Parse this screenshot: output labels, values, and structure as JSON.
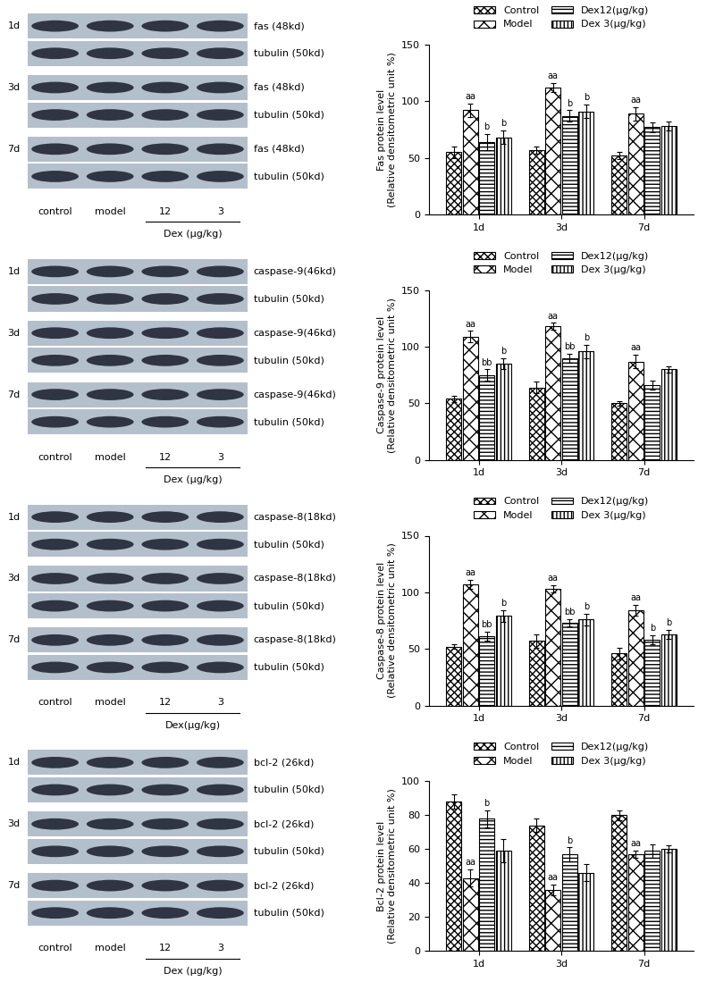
{
  "chart_data": [
    {
      "type": "bar",
      "ylabel": "Fas protein level\n(Relative densitometric unit %)",
      "categories": [
        "1d",
        "3d",
        "7d"
      ],
      "ylim": [
        0,
        150
      ],
      "yticks": [
        0,
        50,
        100,
        150
      ],
      "legend": "upper center",
      "series": [
        {
          "name": "Control",
          "color": "#ffffff",
          "values": [
            55,
            57,
            52
          ],
          "errors": [
            5,
            3,
            3
          ],
          "annotations": [
            null,
            null,
            null
          ]
        },
        {
          "name": "Model",
          "color": "#ffffff",
          "values": [
            92,
            112,
            89
          ],
          "errors": [
            6,
            4,
            6
          ],
          "annotations": [
            "aa",
            "aa",
            "aa"
          ]
        },
        {
          "name": "Dex12(μg/kg)",
          "color": "#ffffff",
          "values": [
            64,
            87,
            77
          ],
          "errors": [
            7,
            5,
            4
          ],
          "annotations": [
            "b",
            "b",
            null
          ]
        },
        {
          "name": "Dex 3(μg/kg)",
          "color": "#ffffff",
          "values": [
            68,
            91,
            78
          ],
          "errors": [
            6,
            6,
            4
          ],
          "annotations": [
            "b",
            "b",
            null
          ]
        }
      ]
    },
    {
      "type": "bar",
      "ylabel": "Caspase-9 protein level\n(Relative densitometric unit %)",
      "categories": [
        "1d",
        "3d",
        "7d"
      ],
      "ylim": [
        0,
        150
      ],
      "yticks": [
        0,
        50,
        100,
        150
      ],
      "legend": "upper center",
      "series": [
        {
          "name": "Control",
          "color": "#ffffff",
          "values": [
            54,
            64,
            50
          ],
          "errors": [
            3,
            5,
            2
          ],
          "annotations": [
            null,
            null,
            null
          ]
        },
        {
          "name": "Model",
          "color": "#ffffff",
          "values": [
            109,
            118,
            87
          ],
          "errors": [
            5,
            3,
            6
          ],
          "annotations": [
            "aa",
            "aa",
            "aa"
          ]
        },
        {
          "name": "Dex12(μg/kg)",
          "color": "#ffffff",
          "values": [
            75,
            90,
            66
          ],
          "errors": [
            5,
            4,
            4
          ],
          "annotations": [
            "bb",
            "bb",
            null
          ]
        },
        {
          "name": "Dex 3(μg/kg)",
          "color": "#ffffff",
          "values": [
            85,
            96,
            80
          ],
          "errors": [
            5,
            6,
            3
          ],
          "annotations": [
            "b",
            "b",
            null
          ]
        }
      ]
    },
    {
      "type": "bar",
      "ylabel": "Caspase-8 protein level\n(Relative densitometric unit %)",
      "categories": [
        "1d",
        "3d",
        "7d"
      ],
      "ylim": [
        0,
        150
      ],
      "yticks": [
        0,
        50,
        100,
        150
      ],
      "legend": "upper center",
      "series": [
        {
          "name": "Control",
          "color": "#ffffff",
          "values": [
            52,
            57,
            46
          ],
          "errors": [
            2,
            6,
            5
          ],
          "annotations": [
            null,
            null,
            null
          ]
        },
        {
          "name": "Model",
          "color": "#ffffff",
          "values": [
            107,
            103,
            84
          ],
          "errors": [
            4,
            3,
            5
          ],
          "annotations": [
            "aa",
            "aa",
            "aa"
          ]
        },
        {
          "name": "Dex12(μg/kg)",
          "color": "#ffffff",
          "values": [
            61,
            73,
            58
          ],
          "errors": [
            4,
            3,
            4
          ],
          "annotations": [
            "bb",
            "bb",
            "b"
          ]
        },
        {
          "name": "Dex 3(μg/kg)",
          "color": "#ffffff",
          "values": [
            79,
            76,
            63
          ],
          "errors": [
            5,
            5,
            4
          ],
          "annotations": [
            "b",
            "b",
            "b"
          ]
        }
      ]
    },
    {
      "type": "bar",
      "ylabel": "Bcl-2 protein level\n(Relative densitometric unit %)",
      "categories": [
        "1d",
        "3d",
        "7d"
      ],
      "ylim": [
        0,
        100
      ],
      "yticks": [
        0,
        20,
        40,
        60,
        80,
        100
      ],
      "legend": "upper center",
      "series": [
        {
          "name": "Control",
          "color": "#ffffff",
          "values": [
            88,
            74,
            80
          ],
          "errors": [
            4,
            4,
            3
          ],
          "annotations": [
            null,
            null,
            null
          ]
        },
        {
          "name": "Model",
          "color": "#ffffff",
          "values": [
            43,
            36,
            57
          ],
          "errors": [
            5,
            3,
            2
          ],
          "annotations": [
            "aa",
            "aa",
            "aa"
          ]
        },
        {
          "name": "Dex12(μg/kg)",
          "color": "#ffffff",
          "values": [
            78,
            57,
            59
          ],
          "errors": [
            5,
            4,
            4
          ],
          "annotations": [
            "b",
            "b",
            null
          ]
        },
        {
          "name": "Dex 3(μg/kg)",
          "color": "#ffffff",
          "values": [
            59,
            46,
            60
          ],
          "errors": [
            7,
            5,
            2
          ],
          "annotations": [
            null,
            null,
            null
          ]
        }
      ]
    }
  ],
  "blots": [
    {
      "target": "fas (48kd)",
      "loading": "tubulin (50kd)",
      "times": [
        "1d",
        "3d",
        "7d"
      ],
      "lanes": [
        "control",
        "model",
        "12",
        "3"
      ],
      "group": "Dex (μg/kg)"
    },
    {
      "target": "caspase-9(46kd)",
      "loading": "tubulin (50kd)",
      "times": [
        "1d",
        "3d",
        "7d"
      ],
      "lanes": [
        "control",
        "model",
        "12",
        "3"
      ],
      "group": "Dex (μg/kg)"
    },
    {
      "target": "caspase-8(18kd)",
      "loading": "tubulin (50kd)",
      "times": [
        "1d",
        "3d",
        "7d"
      ],
      "lanes": [
        "control",
        "model",
        "12",
        "3"
      ],
      "group": "Dex(μg/kg)"
    },
    {
      "target": "bcl-2 (26kd)",
      "loading": "tubulin (50kd)",
      "times": [
        "1d",
        "3d",
        "7d"
      ],
      "lanes": [
        "control",
        "model",
        "12",
        "3"
      ],
      "group": "Dex (μg/kg)"
    }
  ]
}
